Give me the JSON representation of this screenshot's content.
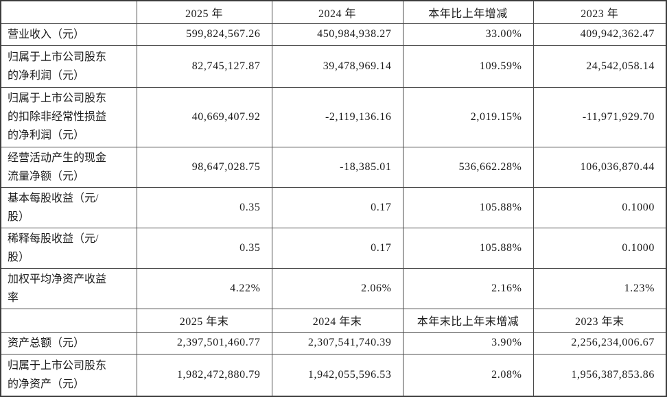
{
  "colors": {
    "header_bg": "#d9d9d9",
    "cell_bg": "#ffffff",
    "border": "#4a4a4a",
    "outer_border": "#3c3c3c",
    "text": "#1a1a1a"
  },
  "table": {
    "s1": {
      "headers": [
        "",
        "2025 年",
        "2024 年",
        "本年比上年增减",
        "2023 年"
      ],
      "rows": [
        {
          "label": "营业收入（元）",
          "values": [
            "599,824,567.26",
            "450,984,938.27",
            "33.00%",
            "409,942,362.47"
          ]
        },
        {
          "label": "归属于上市公司股东\n的净利润（元）",
          "values": [
            "82,745,127.87",
            "39,478,969.14",
            "109.59%",
            "24,542,058.14"
          ]
        },
        {
          "label": "归属于上市公司股东\n的扣除非经常性损益\n的净利润（元）",
          "values": [
            "40,669,407.92",
            "-2,119,136.16",
            "2,019.15%",
            "-11,971,929.70"
          ]
        },
        {
          "label": "经营活动产生的现金\n流量净额（元）",
          "values": [
            "98,647,028.75",
            "-18,385.01",
            "536,662.28%",
            "106,036,870.44"
          ]
        },
        {
          "label": "基本每股收益（元/\n股）",
          "values": [
            "0.35",
            "0.17",
            "105.88%",
            "0.1000"
          ]
        },
        {
          "label": "稀释每股收益（元/\n股）",
          "values": [
            "0.35",
            "0.17",
            "105.88%",
            "0.1000"
          ]
        },
        {
          "label": "加权平均净资产收益\n率",
          "values": [
            "4.22%",
            "2.06%",
            "2.16%",
            "1.23%"
          ]
        }
      ]
    },
    "s2": {
      "headers": [
        "",
        "2025 年末",
        "2024 年末",
        "本年末比上年末增减",
        "2023 年末"
      ],
      "rows": [
        {
          "label": "资产总额（元）",
          "values": [
            "2,397,501,460.77",
            "2,307,541,740.39",
            "3.90%",
            "2,256,234,006.67"
          ]
        },
        {
          "label": "归属于上市公司股东\n的净资产（元）",
          "values": [
            "1,982,472,880.79",
            "1,942,055,596.53",
            "2.08%",
            "1,956,387,853.86"
          ]
        }
      ]
    }
  }
}
